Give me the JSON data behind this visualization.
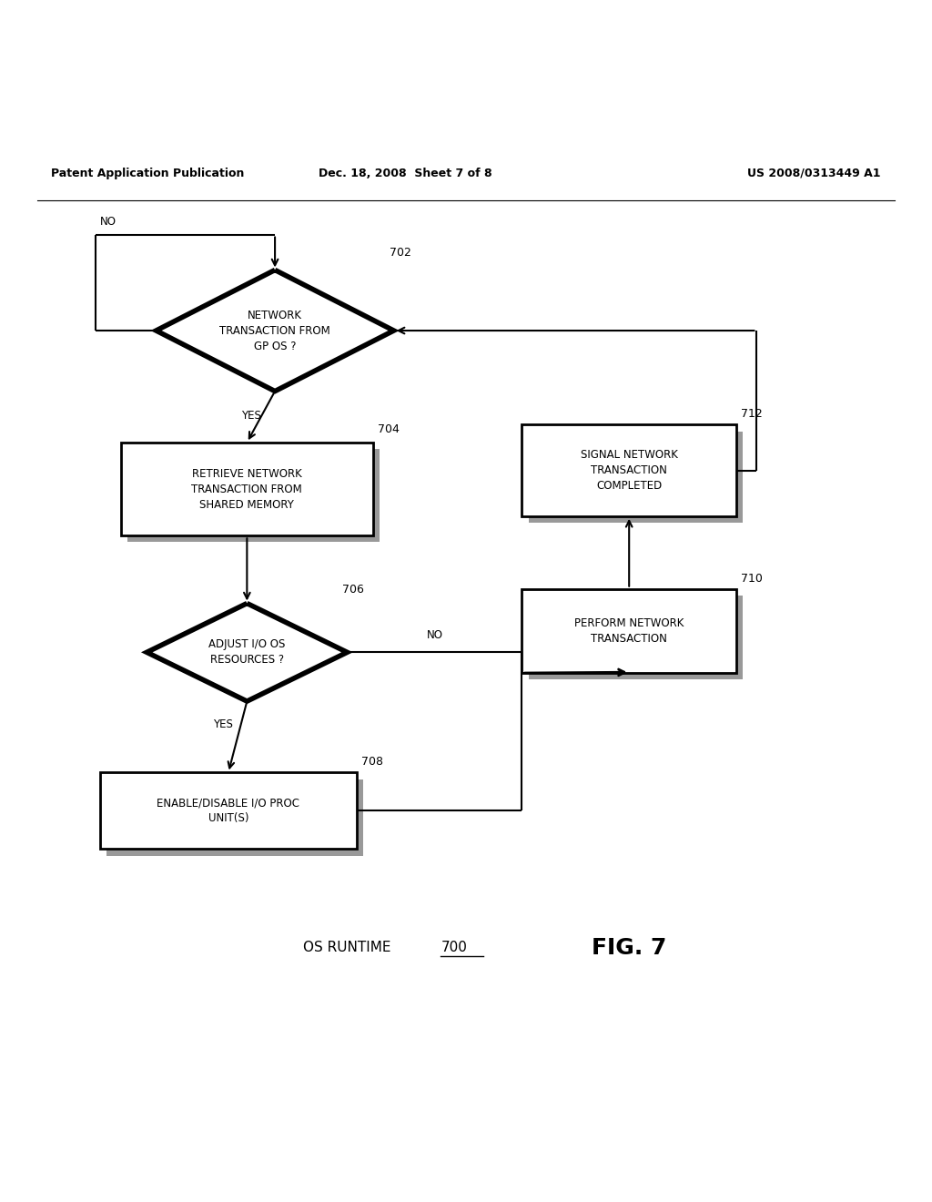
{
  "title_left": "Patent Application Publication",
  "title_center": "Dec. 18, 2008  Sheet 7 of 8",
  "title_right": "US 2008/0313449 A1",
  "fig_label": "FIG. 7",
  "fig_sublabel": "OS RUNTIME ",
  "fig_sublabel_num": "700",
  "background_color": "#ffffff",
  "font_size_node": 8.5,
  "font_size_header": 9,
  "font_size_fig": 18,
  "font_size_sublabel": 11
}
